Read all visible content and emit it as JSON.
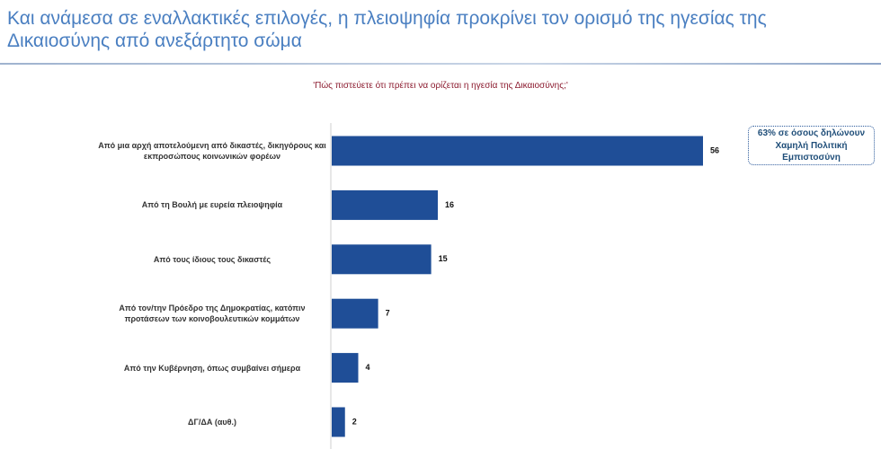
{
  "chart_data": {
    "type": "bar",
    "orientation": "horizontal",
    "title": "Και ανάμεσα σε εναλλακτικές επιλογές, η πλειοψηφία προκρίνει τον ορισμό της ηγεσίας της Δικαιοσύνης από ανεξάρτητο σώμα",
    "subtitle": "'Πώς πιστεύετε ότι πρέπει να ορίζεται η ηγεσία της Δικαιοσύνης;'",
    "categories": [
      "Από μια αρχή αποτελούμενη από δικαστές, δικηγόρους και εκπροσώπους κοινωνικών φορέων",
      "Από τη Βουλή με ευρεία πλειοψηφία",
      "Από τους ίδιους τους δικαστές",
      "Από τον/την Πρόεδρο της Δημοκρατίας, κατόπιν προτάσεων των κοινοβουλευτικών κομμάτων",
      "Από την Κυβέρνηση, όπως συμβαίνει σήμερα",
      "ΔΓ/ΔΑ (αυθ.)"
    ],
    "values": [
      56,
      16,
      15,
      7,
      4,
      2
    ],
    "color": "#1f4e97",
    "annotation": "63% σε όσους δηλώνουν Χαμηλή Πολιτική Εμπιστοσύνη"
  }
}
